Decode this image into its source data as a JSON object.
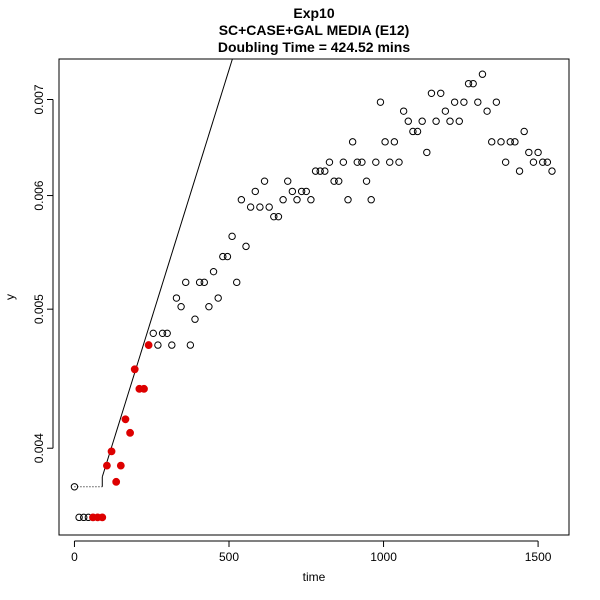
{
  "chart_data": {
    "type": "scatter",
    "title": "Exp10",
    "subtitle": "SC+CASE+GAL MEDIA (E12)",
    "subtitle2": "Doubling Time = 424.52 mins",
    "xlabel": "time",
    "ylabel": "y",
    "xlim": [
      -50,
      1600
    ],
    "ylim": [
      0.00348,
      0.00747
    ],
    "y_scale": "log",
    "x_ticks": [
      0,
      500,
      1000,
      1500
    ],
    "x_tick_labels": [
      "0",
      "500",
      "1000",
      "1500"
    ],
    "y_ticks": [
      0.004,
      0.005,
      0.006,
      0.007
    ],
    "y_tick_labels": [
      "0.004",
      "0.005",
      "0.006",
      "0.007"
    ],
    "grid": false,
    "legend": "none",
    "colors": {
      "highlighted": "#dd0000",
      "open": "#000000"
    },
    "open_points": {
      "x": [
        0,
        15,
        30,
        45,
        255,
        270,
        285,
        300,
        315,
        330,
        345,
        360,
        375,
        390,
        405,
        420,
        435,
        450,
        465,
        480,
        495,
        510,
        525,
        540,
        555,
        570,
        585,
        600,
        615,
        630,
        645,
        660,
        675,
        690,
        705,
        720,
        735,
        750,
        765,
        780,
        795,
        810,
        825,
        840,
        855,
        870,
        885,
        900,
        915,
        930,
        945,
        960,
        975,
        990,
        1005,
        1020,
        1035,
        1050,
        1065,
        1080,
        1095,
        1110,
        1125,
        1140,
        1155,
        1170,
        1185,
        1200,
        1215,
        1230,
        1245,
        1260,
        1275,
        1290,
        1305,
        1320,
        1335,
        1350,
        1365,
        1380,
        1395,
        1410,
        1425,
        1440,
        1455,
        1470,
        1485,
        1500,
        1515,
        1530,
        1545
      ],
      "y": [
        0.00376,
        0.00358,
        0.00358,
        0.00358,
        0.00481,
        0.00472,
        0.00481,
        0.00481,
        0.00472,
        0.00509,
        0.00502,
        0.00522,
        0.00472,
        0.00492,
        0.00522,
        0.00522,
        0.00502,
        0.00531,
        0.00509,
        0.00544,
        0.00544,
        0.00562,
        0.00522,
        0.00596,
        0.00553,
        0.00589,
        0.00604,
        0.00589,
        0.00614,
        0.00589,
        0.0058,
        0.0058,
        0.00596,
        0.00614,
        0.00604,
        0.00596,
        0.00604,
        0.00604,
        0.00596,
        0.00624,
        0.00624,
        0.00624,
        0.00633,
        0.00614,
        0.00614,
        0.00633,
        0.00596,
        0.00654,
        0.00633,
        0.00633,
        0.00614,
        0.00596,
        0.00633,
        0.00697,
        0.00654,
        0.00633,
        0.00654,
        0.00633,
        0.00687,
        0.00676,
        0.00665,
        0.00665,
        0.00676,
        0.00643,
        0.00707,
        0.00676,
        0.00707,
        0.00687,
        0.00676,
        0.00697,
        0.00676,
        0.00697,
        0.00718,
        0.00718,
        0.00697,
        0.00729,
        0.00687,
        0.00654,
        0.00697,
        0.00654,
        0.00633,
        0.00654,
        0.00654,
        0.00624,
        0.00665,
        0.00643,
        0.00633,
        0.00643,
        0.00633,
        0.00633,
        0.00624
      ]
    },
    "highlighted_points": {
      "x": [
        60,
        75,
        90,
        105,
        120,
        135,
        150,
        165,
        180,
        195,
        210,
        225,
        240
      ],
      "y": [
        0.00358,
        0.00358,
        0.00358,
        0.00389,
        0.00398,
        0.00379,
        0.00389,
        0.00419,
        0.0041,
        0.00454,
        0.0044,
        0.0044,
        0.00472
      ]
    },
    "fit_line": {
      "x": [
        90,
        530
      ],
      "y": [
        0.00382,
        0.0077
      ]
    },
    "baseline_segment": {
      "x": [
        0,
        90
      ],
      "y": [
        0.00376,
        0.00376
      ],
      "style": "dotted"
    }
  }
}
